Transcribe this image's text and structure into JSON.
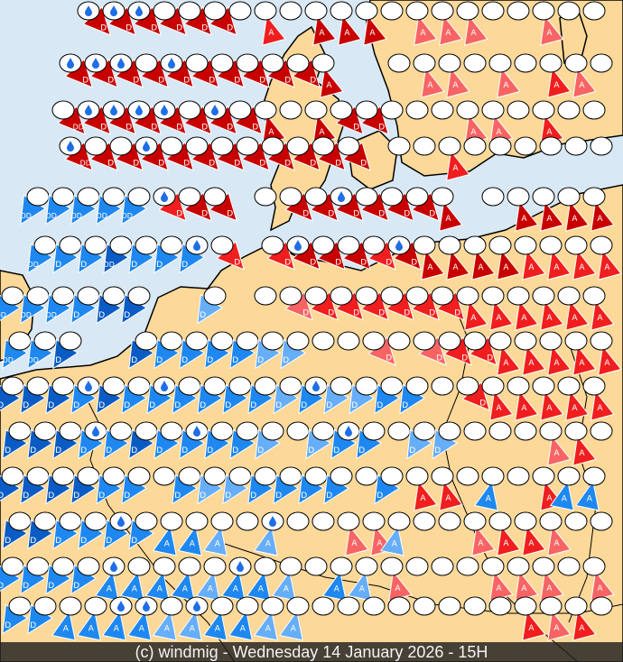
{
  "footer": {
    "caption": "(c) windmig - Wednesday 14 January 2026 - 15H"
  },
  "colors": {
    "sea": "#d8e8f4",
    "land": "#fcd899",
    "border": "#000000",
    "B": "#0a5cc4",
    "b": "#1e88f0",
    "l": "#66aef8",
    "R": "#c80000",
    "r": "#f01e1e",
    "p": "#f86464",
    "ellipse": "#ffffff",
    "drop_icon": "#1e6ee6"
  },
  "legend_codes": {
    "D": "D",
    "DD": "DD",
    "A": "A"
  },
  "symbol_rows": [
    ". . . R:D+ R:D+ R:D+ R:D R:D R:D w r:A w R:A R:A R:A w p:A p:A p:A w w p:A w w",
    ". . R:D+ R:D+ R:D+ R:D R:D+ R:D R:D R:D R:D R:D R:A . . w p:A p:A w p:A w r:A p:A w",
    ". . R:DD R:D+ R:D+ R:D+ R:D+ R:D R:D+ R:D R:A w R:A R:D R:D w w w p:A p:A w r:A w w",
    ". . R:DD+ R:D R:D R:D+ R:D R:D R:D R:D R:D R:D R:D R:D . w w r:A w w w w w w",
    ". b:DD b:DD b:DD b:DD b:DD r:D+ R:D R:D . w R:D R:D R:D+ R:D R:D R:D R:A . w R:A R:A R:A R:A",
    ". b:DD b:D b:D B:DD b:D b:D b:D+ r:D . r:D R:D+ R:D R:D r:D R:D+ R:A R:A R:A R:A r:A r:A r:A r:A",
    "b:DD b:DD b:DD b:D B:D B:D . . l:D . w p:D r:D r:D r:D r:D r:D r:D r:A r:A r:A r:A r:A r:A",
    "b:DD b:DD B:D . . B:D b:D b:D b:D b:D l:D l:D w w p:D w p:D r:D r:D r:A r:A r:A r:A r:A",
    "B:D B:D B:D b:D+ B:D b:D b:D+ b:D b:D b:D b:D l:D b:D+ l:D l:D b:D b:D w r:D r:A r:A r:A r:A r:A",
    "B:D B:D B:D b:D+ b:D B:D b:D b:D+ b:D b:D l:D w l:D b:D+ b:D w l:D l:D w w w p:A r:A w",
    "B:D B:D B:D B:D b:D b:D w b:D l:D l:D b:D b:D b:D b:D w b:D r:A r:A w b:A w r:A b:A b:A",
    "B:D B:D b:D b:D b:D+ b:D b:A b:A l:A w l:A+ w w p:A p:A l:A w w p:A r:A r:A p:A w w",
    "b:D b:D b:D b:D b:A+ b:A b:A b:A l:A b:A+ b:A l:A w b:A l:A p:A w w w p:A p:A p:A w p:A",
    "b:D b:D b:A b:A b:A+ b:A+ l:A l:A+ b:A b:A l:A l:A w w w w w w w w r:A p:A r:A w"
  ]
}
